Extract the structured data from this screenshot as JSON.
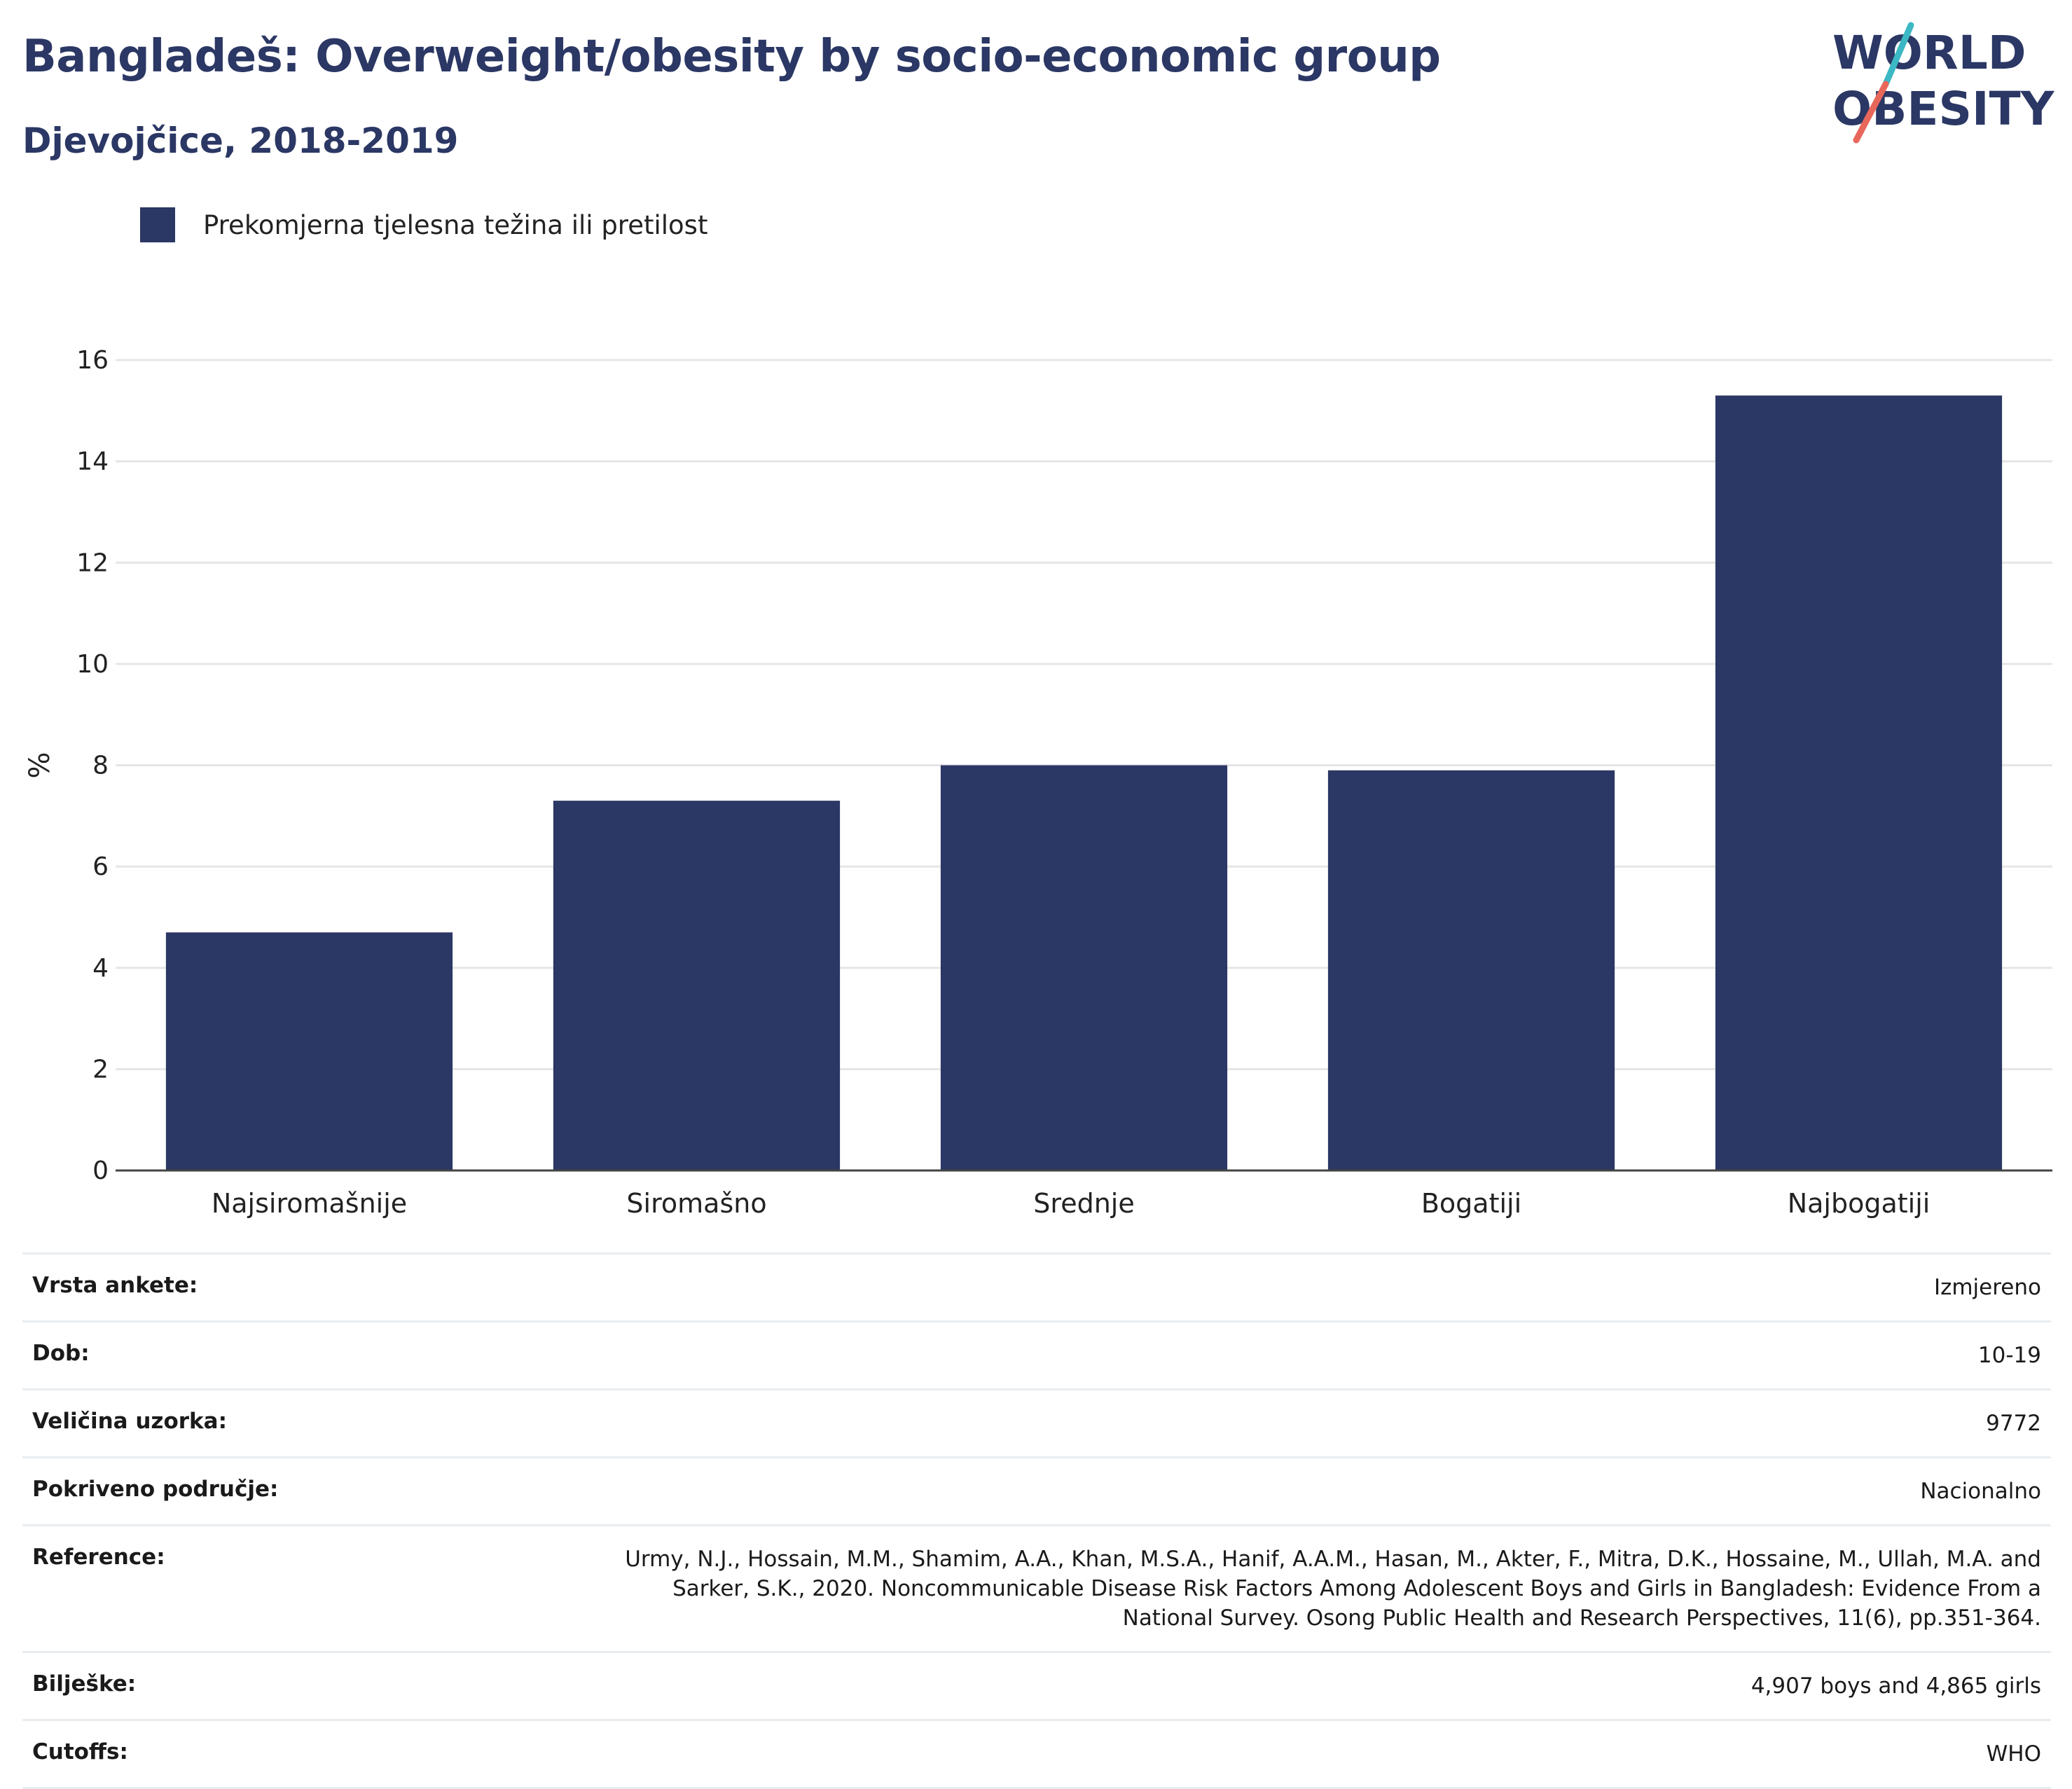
{
  "header": {
    "title": "Bangladeš: Overweight/obesity by socio-economic group",
    "subtitle": "Djevojčice, 2018-2019"
  },
  "logo": {
    "line1": "WORLD",
    "line2": "OBESITY",
    "colors": {
      "text": "#2b3764",
      "slash_top": "#3bb8c3",
      "slash_bottom": "#e8675b"
    }
  },
  "legend": {
    "label": "Prekomjerna tjelesna težina ili pretilost",
    "color": "#2b3764"
  },
  "chart_data": {
    "type": "bar",
    "categories": [
      "Najsiromašnije",
      "Siromašno",
      "Srednje",
      "Bogatiji",
      "Najbogatiji"
    ],
    "series": [
      {
        "name": "Prekomjerna tjelesna težina ili pretilost",
        "values": [
          4.7,
          7.3,
          8.0,
          7.9,
          15.3
        ],
        "color": "#2b3764"
      }
    ],
    "ylabel": "%",
    "ylim": [
      0,
      16
    ],
    "yticks": [
      0,
      2,
      4,
      6,
      8,
      10,
      12,
      14,
      16
    ],
    "grid": true
  },
  "info": [
    {
      "label": "Vrsta ankete:",
      "value": "Izmjereno"
    },
    {
      "label": "Dob:",
      "value": "10-19"
    },
    {
      "label": "Veličina uzorka:",
      "value": "9772"
    },
    {
      "label": "Pokriveno područje:",
      "value": "Nacionalno"
    },
    {
      "label": "Reference:",
      "value": "Urmy, N.J., Hossain, M.M., Shamim, A.A., Khan, M.S.A., Hanif, A.A.M., Hasan, M., Akter, F., Mitra, D.K., Hossaine, M., Ullah, M.A. and Sarker, S.K., 2020. Noncommunicable Disease Risk Factors Among Adolescent Boys and Girls in Bangladesh: Evidence From a National Survey. Osong Public Health and Research Perspectives, 11(6), pp.351-364."
    },
    {
      "label": "Bilješke:",
      "value": "4,907 boys and 4,865 girls"
    },
    {
      "label": "Cutoffs:",
      "value": "WHO"
    }
  ]
}
